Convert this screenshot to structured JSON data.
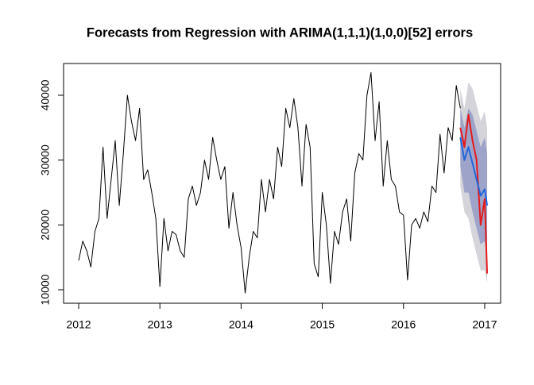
{
  "chart_data": {
    "type": "line",
    "title": "Forecasts from Regression with ARIMA(1,1,1)(1,0,0)[52] errors",
    "xlim": [
      2011.814,
      2017.196
    ],
    "ylim": [
      7919,
      44896
    ],
    "xticks": [
      2012,
      2013,
      2014,
      2015,
      2016,
      2017
    ],
    "yticks": [
      10000,
      20000,
      30000,
      40000
    ],
    "series": [
      {
        "color": "#000000",
        "x": [
          2012.0,
          2012.05,
          2012.1,
          2012.15,
          2012.2,
          2012.25,
          2012.3,
          2012.35,
          2012.4,
          2012.45,
          2012.5,
          2012.55,
          2012.6,
          2012.65,
          2012.7,
          2012.75,
          2012.8,
          2012.85,
          2012.9,
          2012.95,
          2013.0,
          2013.05,
          2013.1,
          2013.15,
          2013.2,
          2013.25,
          2013.3,
          2013.35,
          2013.4,
          2013.45,
          2013.5,
          2013.55,
          2013.6,
          2013.65,
          2013.7,
          2013.75,
          2013.8,
          2013.85,
          2013.9,
          2013.95,
          2014.0,
          2014.05,
          2014.1,
          2014.15,
          2014.2,
          2014.25,
          2014.3,
          2014.35,
          2014.4,
          2014.45,
          2014.5,
          2014.55,
          2014.6,
          2014.65,
          2014.7,
          2014.75,
          2014.8,
          2014.85,
          2014.9,
          2014.95,
          2015.0,
          2015.05,
          2015.1,
          2015.15,
          2015.2,
          2015.25,
          2015.3,
          2015.35,
          2015.4,
          2015.45,
          2015.5,
          2015.55,
          2015.6,
          2015.65,
          2015.7,
          2015.75,
          2015.8,
          2015.85,
          2015.9,
          2015.95,
          2016.0,
          2016.05,
          2016.1,
          2016.15,
          2016.2,
          2016.25,
          2016.3,
          2016.35,
          2016.4,
          2016.45,
          2016.5,
          2016.55,
          2016.6,
          2016.65,
          2016.7
        ],
        "values": [
          14500,
          17500,
          16000,
          13500,
          19000,
          21000,
          32000,
          21000,
          27000,
          33000,
          23000,
          31000,
          40000,
          36000,
          33000,
          38000,
          27000,
          28500,
          25000,
          21000,
          10500,
          21000,
          16000,
          19000,
          18500,
          16000,
          15000,
          24000,
          26000,
          23000,
          25000,
          30000,
          27000,
          33500,
          30000,
          27000,
          29000,
          19500,
          25000,
          20000,
          16500,
          9500,
          15000,
          19000,
          18000,
          27000,
          22000,
          27000,
          24000,
          32000,
          29000,
          38000,
          35000,
          39500,
          35000,
          26000,
          35500,
          32000,
          14000,
          12000,
          25000,
          20000,
          11000,
          19000,
          17000,
          22000,
          24000,
          17500,
          28000,
          31000,
          30000,
          40000,
          43500,
          33000,
          39000,
          26000,
          33000,
          27000,
          26000,
          22000,
          21500,
          11500,
          20000,
          21000,
          19500,
          22000,
          20500,
          26000,
          25000,
          34000,
          28000,
          35000,
          33000,
          41500,
          38000
        ]
      },
      {
        "color": "#e41a1c",
        "x": [
          2016.7,
          2016.75,
          2016.8,
          2016.85,
          2016.9,
          2016.95,
          2017.0,
          2017.03
        ],
        "values": [
          35000,
          32000,
          37000,
          33000,
          30000,
          20000,
          24000,
          12500
        ]
      },
      {
        "color": "#2266dd",
        "x": [
          2016.7,
          2016.75,
          2016.8,
          2016.85,
          2016.9,
          2016.95,
          2017.0,
          2017.03
        ],
        "values": [
          33500,
          30000,
          32000,
          29500,
          27000,
          24500,
          25500,
          23000
        ]
      }
    ],
    "bands": [
      {
        "color": "#d4d4da",
        "x": [
          2016.7,
          2016.75,
          2016.8,
          2016.85,
          2016.9,
          2016.95,
          2017.0,
          2017.03
        ],
        "lower": [
          26000,
          22000,
          21000,
          18000,
          15500,
          13000,
          13000,
          11000
        ],
        "upper": [
          41000,
          38000,
          42000,
          41000,
          38500,
          36000,
          37500,
          35000
        ]
      },
      {
        "color": "#9ea3c9",
        "x": [
          2016.7,
          2016.75,
          2016.8,
          2016.85,
          2016.9,
          2016.95,
          2017.0,
          2017.03
        ],
        "lower": [
          29000,
          25000,
          25000,
          22000,
          19500,
          17000,
          17500,
          15000
        ],
        "upper": [
          38000,
          35000,
          38000,
          37000,
          34500,
          32000,
          33500,
          31000
        ]
      }
    ]
  }
}
